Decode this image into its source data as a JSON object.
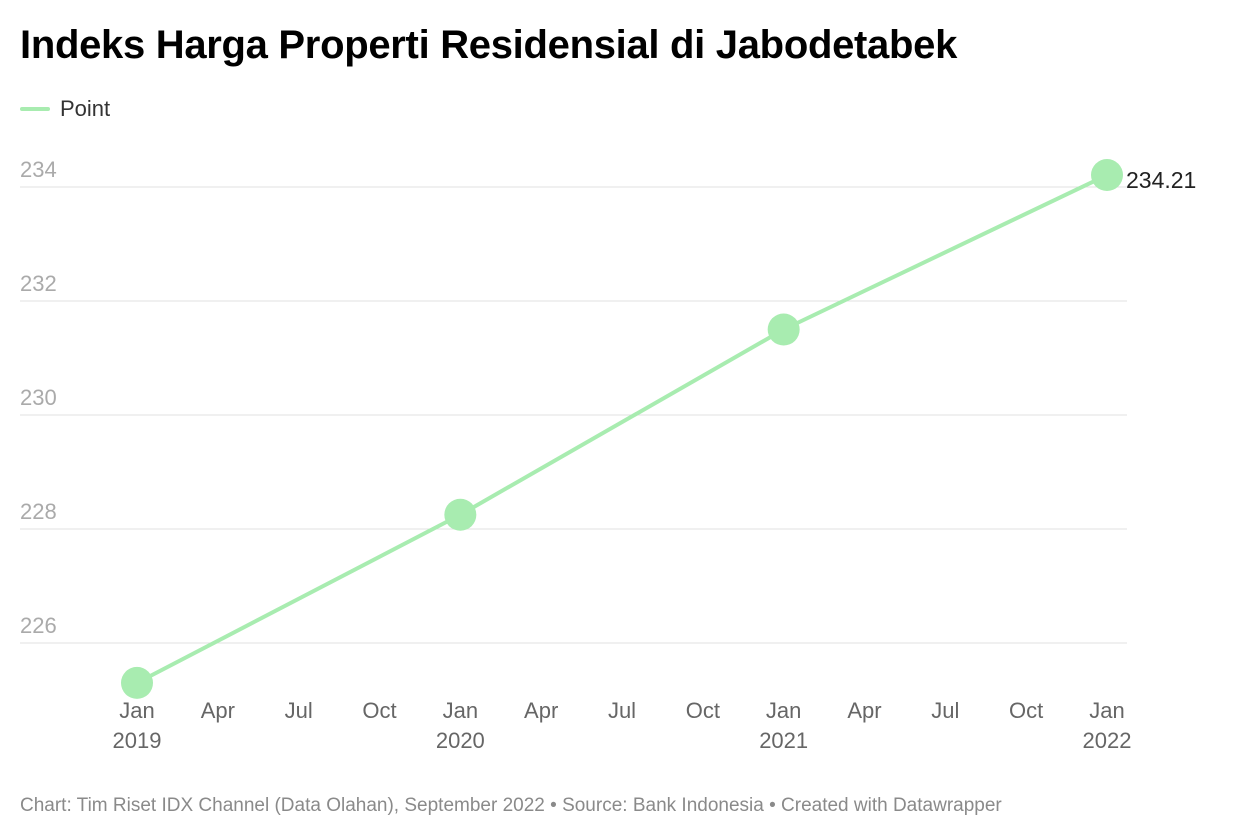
{
  "title": "Indeks Harga Properti Residensial di Jabodetabek",
  "legend": {
    "label": "Point",
    "color": "#a8ecb0"
  },
  "footer": "Chart: Tim Riset IDX Channel (Data Olahan), September 2022 • Source: Bank Indonesia • Created with Datawrapper",
  "chart_data": {
    "type": "line",
    "title": "Indeks Harga Properti Residensial di Jabodetabek",
    "xlabel": "",
    "ylabel": "",
    "series": [
      {
        "name": "Point",
        "color": "#a8ecb0",
        "points": [
          {
            "x": "2019-01",
            "y": 225.3
          },
          {
            "x": "2020-01",
            "y": 228.25
          },
          {
            "x": "2021-01",
            "y": 231.5
          },
          {
            "x": "2022-01",
            "y": 234.21
          }
        ]
      }
    ],
    "end_label": "234.21",
    "y_ticks": [
      "226",
      "228",
      "230",
      "232",
      "234"
    ],
    "ylim": [
      225,
      234.5
    ],
    "x_ticks": [
      {
        "month": "Jan",
        "year": "2019"
      },
      {
        "month": "Apr",
        "year": ""
      },
      {
        "month": "Jul",
        "year": ""
      },
      {
        "month": "Oct",
        "year": ""
      },
      {
        "month": "Jan",
        "year": "2020"
      },
      {
        "month": "Apr",
        "year": ""
      },
      {
        "month": "Jul",
        "year": ""
      },
      {
        "month": "Oct",
        "year": ""
      },
      {
        "month": "Jan",
        "year": "2021"
      },
      {
        "month": "Apr",
        "year": ""
      },
      {
        "month": "Jul",
        "year": ""
      },
      {
        "month": "Oct",
        "year": ""
      },
      {
        "month": "Jan",
        "year": "2022"
      }
    ],
    "xlim": [
      "2019-01",
      "2022-01"
    ],
    "grid": true,
    "legend_position": "top-left"
  }
}
